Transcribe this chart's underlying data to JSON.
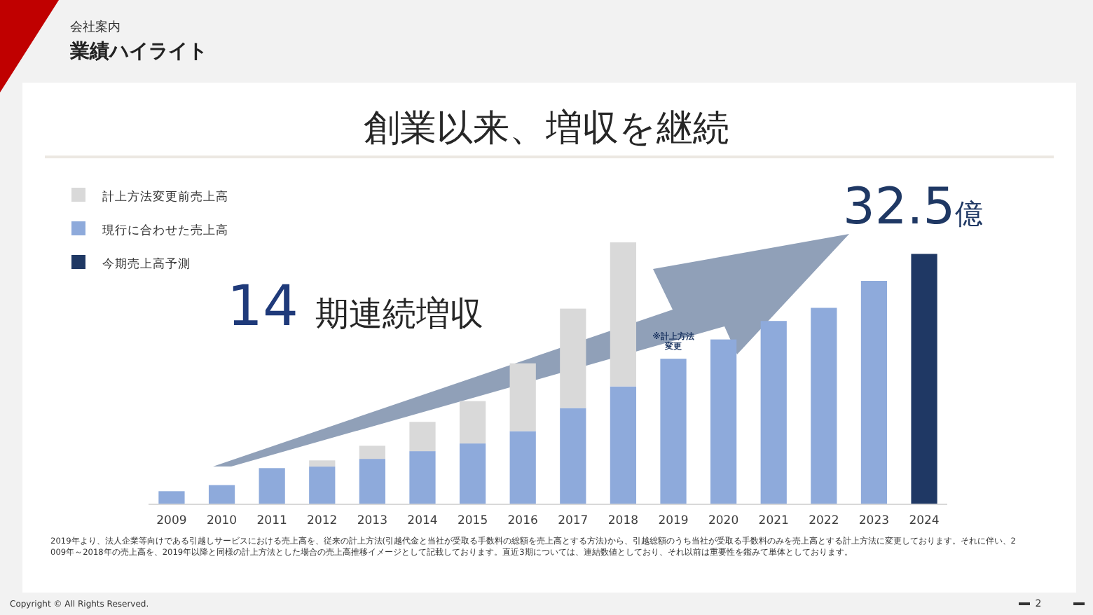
{
  "chart_data": {
    "type": "bar",
    "title": "創業以来、増収を継続",
    "stacked": true,
    "legend": "top left",
    "categories": [
      "2009",
      "2010",
      "2011",
      "2012",
      "2013",
      "2014",
      "2015",
      "2016",
      "2017",
      "2018",
      "2019",
      "2020",
      "2021",
      "2022",
      "2023",
      "2024"
    ],
    "series": [
      {
        "name": "現行に合わせた売上高",
        "color": "#8eaadb",
        "values": [
          1.7,
          2.5,
          4.7,
          4.9,
          5.9,
          6.9,
          7.9,
          9.5,
          12.5,
          15.3,
          18.9,
          21.4,
          23.8,
          25.5,
          29.0,
          null
        ]
      },
      {
        "name": "計上方法変更前売上高",
        "color": "#d9d9d9",
        "values": [
          null,
          null,
          null,
          0.8,
          1.7,
          3.8,
          5.5,
          8.8,
          12.9,
          18.7,
          null,
          null,
          null,
          null,
          null,
          null
        ]
      },
      {
        "name": "今期売上高予測",
        "color": "#1f3864",
        "values": [
          null,
          null,
          null,
          null,
          null,
          null,
          null,
          null,
          null,
          null,
          null,
          null,
          null,
          null,
          null,
          32.5
        ],
        "value_labels": [
          null,
          null,
          null,
          null,
          null,
          null,
          null,
          null,
          null,
          null,
          null,
          null,
          null,
          null,
          null,
          "32.5億"
        ]
      }
    ],
    "annotations": [
      "会社案内",
      "業績ハイライト",
      "14 期連続増収",
      {
        "text": "※計上方法変更",
        "x": "2019",
        "y": 18.9
      },
      "2019年より、法人企業等向けである引越しサービスにおける売上高を、従来の計上方法(引越代金と当社が受取る手数料の総額を売上高とする方法)から、引越総額のうち当社が受取る手数料のみを売上高とする計上方法に変更しております。それに伴い、2009年～2018年の売上高を、2019年以降と同様の計上方法とした場合の売上高推移イメージとして記載しております。直近3期については、連結数値としており、それ以前は重要性を鑑みて単体としております。",
      "Copyright © All Rights Reserved.",
      "2"
    ]
  }
}
